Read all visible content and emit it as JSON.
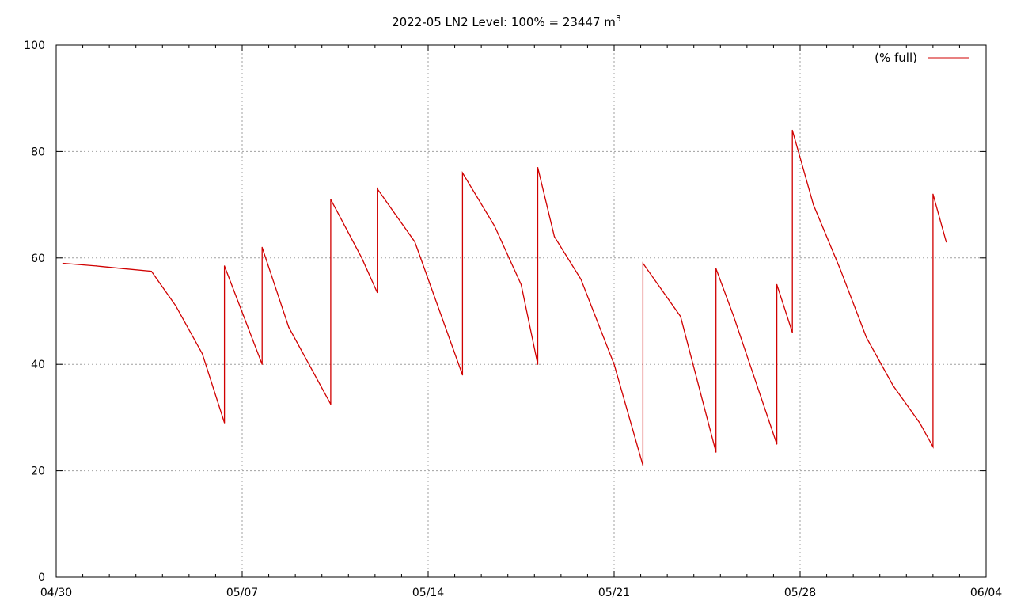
{
  "chart_data": {
    "type": "line",
    "title": "2022-05 LN2 Level: 100% = 23447 m",
    "title_superscript": "3",
    "xlabel": "",
    "ylabel": "",
    "xlim": [
      "2022-04-30",
      "2022-06-04"
    ],
    "ylim": [
      0,
      100
    ],
    "grid": true,
    "legend_position": "top-right",
    "x_ticks": [
      "04/30",
      "05/07",
      "05/14",
      "05/21",
      "05/28",
      "06/04"
    ],
    "y_ticks": [
      "0",
      "20",
      "40",
      "60",
      "80",
      "100"
    ],
    "series": [
      {
        "name": "(% full)",
        "color": "#d00000",
        "x": [
          "2022-04-30 06:00",
          "2022-05-01 12:00",
          "2022-05-02 12:00",
          "2022-05-03 14:00",
          "2022-05-04 12:00",
          "2022-05-05 12:00",
          "2022-05-06 08:00",
          "2022-05-06 08:01",
          "2022-05-07 18:00",
          "2022-05-07 18:01",
          "2022-05-08 18:00",
          "2022-05-10 08:00",
          "2022-05-10 08:01",
          "2022-05-11 12:00",
          "2022-05-12 02:00",
          "2022-05-12 02:01",
          "2022-05-13 12:00",
          "2022-05-15 07:00",
          "2022-05-15 07:01",
          "2022-05-16 12:00",
          "2022-05-17 12:00",
          "2022-05-18 03:00",
          "2022-05-18 03:01",
          "2022-05-18 18:00",
          "2022-05-19 18:00",
          "2022-05-21 00:00",
          "2022-05-22 02:00",
          "2022-05-22 02:01",
          "2022-05-23 12:00",
          "2022-05-24 20:00",
          "2022-05-24 20:01",
          "2022-05-25 12:00",
          "2022-05-27 03:00",
          "2022-05-27 03:01",
          "2022-05-27 17:00",
          "2022-05-27 17:01",
          "2022-05-28 12:00",
          "2022-05-29 12:00",
          "2022-05-30 12:00",
          "2022-05-31 12:00",
          "2022-06-01 12:00",
          "2022-06-02 00:00",
          "2022-06-02 00:01",
          "2022-06-02 12:00"
        ],
        "values": [
          59,
          58.5,
          58,
          57.5,
          51,
          42,
          29,
          58.5,
          40,
          62,
          47,
          32.5,
          71,
          60,
          53.5,
          73,
          63,
          38,
          76,
          66,
          55,
          40,
          77,
          64,
          56,
          40,
          21,
          59,
          49,
          23.5,
          58,
          49,
          25,
          55,
          46,
          84,
          70,
          58,
          45,
          36,
          29,
          24.5,
          72,
          63
        ]
      }
    ]
  }
}
